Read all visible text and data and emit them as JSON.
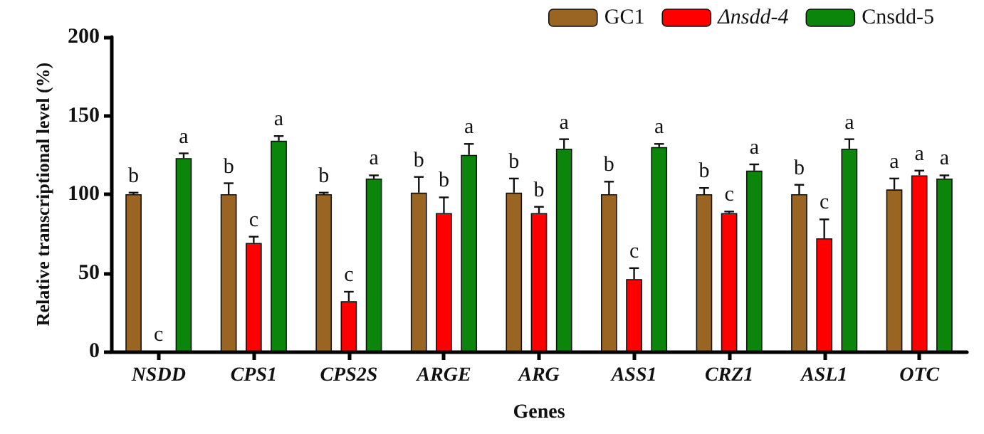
{
  "chart_data": {
    "type": "bar",
    "xlabel": "Genes",
    "ylabel": "Relative transcriptional level (%)",
    "categories": [
      "NSDD",
      "CPS1",
      "CPS2S",
      "ARGE",
      "ARG",
      "ASS1",
      "CRZ1",
      "ASL1",
      "OTC"
    ],
    "series": [
      {
        "name": "GC1",
        "color": "#9a6523",
        "values": [
          100,
          100,
          100,
          101,
          101,
          100,
          100,
          100,
          103
        ],
        "errors": [
          1,
          7,
          1,
          10,
          9,
          8,
          4,
          6,
          7
        ],
        "value_labels": [
          "b",
          "b",
          "b",
          "b",
          "b",
          "b",
          "b",
          "b",
          "a"
        ]
      },
      {
        "name": "Δnsdd-4",
        "color": "#ff0000",
        "values": [
          0,
          69,
          32,
          88,
          88,
          46,
          88,
          72,
          112
        ],
        "errors": [
          0,
          4,
          6,
          10,
          4,
          7,
          1,
          12,
          3
        ],
        "value_labels": [
          "c",
          "c",
          "c",
          "b",
          "b",
          "c",
          "c",
          "c",
          "a"
        ]
      },
      {
        "name": "Cnsdd-5",
        "color": "#0b860b",
        "values": [
          123,
          134,
          110,
          125,
          129,
          130,
          115,
          129,
          110
        ],
        "errors": [
          3,
          3,
          2,
          7,
          6,
          2,
          4,
          6,
          2
        ],
        "value_labels": [
          "a",
          "a",
          "a",
          "a",
          "a",
          "a",
          "a",
          "a",
          "a"
        ]
      }
    ],
    "ylim": [
      0,
      200
    ],
    "yticks": [
      0,
      50,
      100,
      150,
      200
    ],
    "grid": false,
    "legend": "top right"
  }
}
